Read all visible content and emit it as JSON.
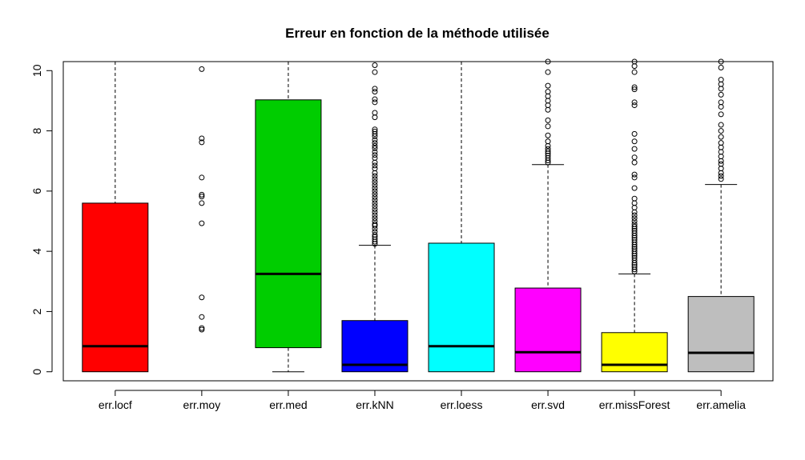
{
  "chart_data": {
    "type": "boxplot",
    "title": "Erreur en fonction de la méthode utilisée",
    "xlabel": "",
    "ylabel": "",
    "ylim": [
      -0.3,
      10.3
    ],
    "yticks": [
      0,
      2,
      4,
      6,
      8,
      10
    ],
    "grid": false,
    "categories": [
      "err.locf",
      "err.moy",
      "err.med",
      "err.kNN",
      "err.loess",
      "err.svd",
      "err.missForest",
      "err.amelia"
    ],
    "boxes": [
      {
        "name": "err.locf",
        "color": "#ff0000",
        "q1": 0,
        "median": 0.85,
        "q3": 5.6,
        "whisker_low": 0,
        "whisker_high": 10.3,
        "outliers": []
      },
      {
        "name": "err.moy",
        "color": "#ffffff",
        "q1": 0,
        "median": 0,
        "q3": 0,
        "whisker_low": 0,
        "whisker_high": 0,
        "outliers": [
          10.05,
          7.75,
          7.62,
          6.45,
          5.88,
          5.82,
          5.6,
          4.93,
          2.47,
          1.82,
          1.45,
          1.4
        ]
      },
      {
        "name": "err.med",
        "color": "#00cd00",
        "q1": 0.8,
        "median": 3.25,
        "q3": 9.03,
        "whisker_low": 0,
        "whisker_high": 10.3,
        "outliers": []
      },
      {
        "name": "err.kNN",
        "color": "#0000ff",
        "q1": 0,
        "median": 0.23,
        "q3": 1.7,
        "whisker_low": 0,
        "whisker_high": 4.2,
        "outliers": [
          10.18,
          9.95,
          9.4,
          9.3,
          9.05,
          8.95,
          8.6,
          8.45,
          8.05,
          7.98,
          7.9,
          7.82,
          7.7,
          7.6,
          7.5,
          7.42,
          7.3,
          7.2,
          7.1,
          6.95,
          6.85,
          6.75,
          6.6,
          6.5,
          6.4,
          6.3,
          6.2,
          6.1,
          6.0,
          5.9,
          5.8,
          5.7,
          5.6,
          5.5,
          5.4,
          5.3,
          5.2,
          5.1,
          5.0,
          4.9,
          4.85,
          4.75,
          4.65,
          4.55,
          4.48,
          4.4,
          4.32,
          4.25
        ]
      },
      {
        "name": "err.loess",
        "color": "#00ffff",
        "q1": 0,
        "median": 0.85,
        "q3": 4.27,
        "whisker_low": 0,
        "whisker_high": 10.3,
        "outliers": []
      },
      {
        "name": "err.svd",
        "color": "#ff00ff",
        "q1": 0,
        "median": 0.65,
        "q3": 2.78,
        "whisker_low": 0,
        "whisker_high": 6.88,
        "outliers": [
          10.3,
          9.95,
          9.5,
          9.3,
          9.15,
          9.0,
          8.85,
          8.7,
          8.35,
          8.15,
          7.85,
          7.65,
          7.5,
          7.4,
          7.32,
          7.25,
          7.18,
          7.1,
          7.02,
          6.95
        ]
      },
      {
        "name": "err.missForest",
        "color": "#ffff00",
        "q1": 0,
        "median": 0.23,
        "q3": 1.3,
        "whisker_low": 0,
        "whisker_high": 3.25,
        "outliers": [
          10.3,
          10.15,
          9.95,
          9.45,
          9.38,
          8.95,
          8.85,
          7.9,
          7.65,
          7.4,
          7.12,
          6.95,
          6.55,
          6.45,
          6.1,
          5.75,
          5.6,
          5.45,
          5.3,
          5.2,
          5.1,
          5.0,
          4.9,
          4.82,
          4.75,
          4.68,
          4.6,
          4.52,
          4.45,
          4.38,
          4.3,
          4.22,
          4.15,
          4.08,
          4.0,
          3.92,
          3.85,
          3.78,
          3.7,
          3.62,
          3.55,
          3.48,
          3.4,
          3.33
        ]
      },
      {
        "name": "err.amelia",
        "color": "#bebebe",
        "q1": 0,
        "median": 0.63,
        "q3": 2.5,
        "whisker_low": 0,
        "whisker_high": 6.22,
        "outliers": [
          10.3,
          10.1,
          9.7,
          9.55,
          9.4,
          9.2,
          8.95,
          8.8,
          8.55,
          8.2,
          8.0,
          7.8,
          7.6,
          7.45,
          7.3,
          7.15,
          7.0,
          6.9,
          6.75,
          6.6,
          6.5,
          6.4
        ]
      }
    ]
  }
}
